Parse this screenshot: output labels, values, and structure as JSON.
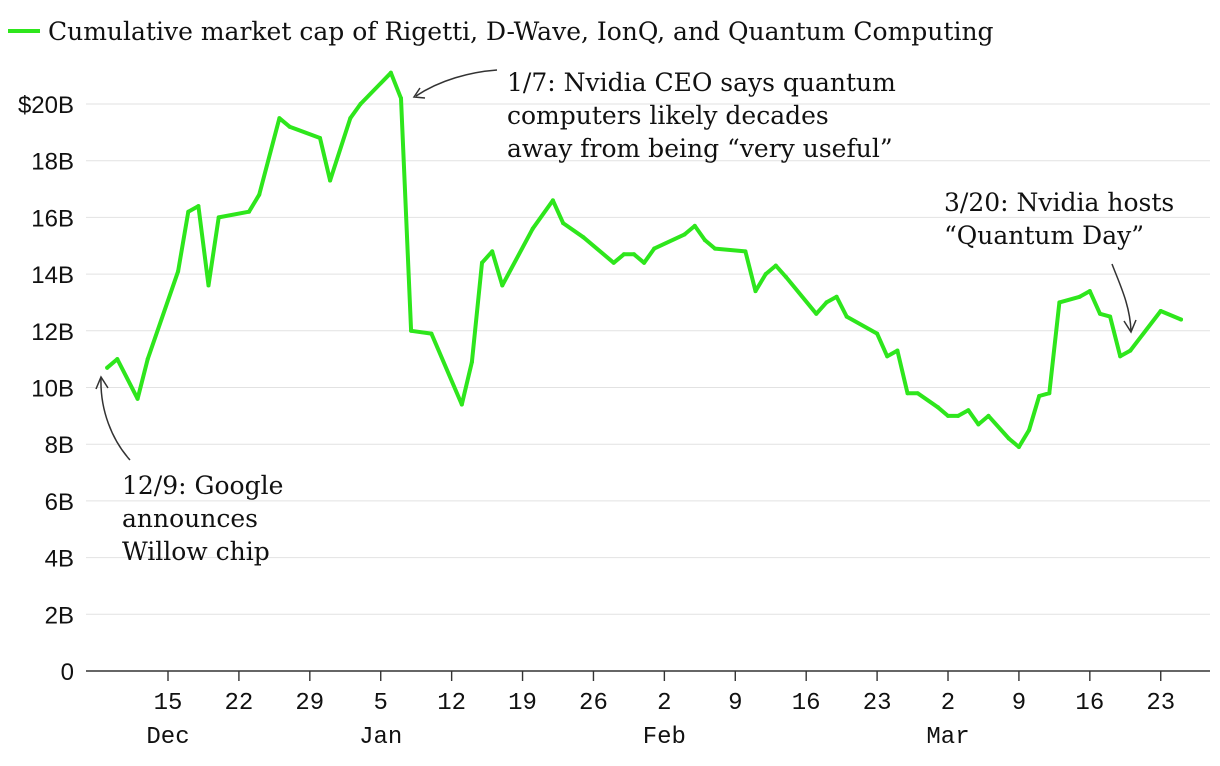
{
  "chart_data": {
    "type": "line",
    "legend": "Cumulative market cap of Rigetti, D-Wave, IonQ, and Quantum Computing",
    "series_color": "#2ee61c",
    "ylim": [
      0,
      21
    ],
    "y_ticks": [
      {
        "value": 0,
        "label": "0"
      },
      {
        "value": 2,
        "label": "2B"
      },
      {
        "value": 4,
        "label": "4B"
      },
      {
        "value": 6,
        "label": "6B"
      },
      {
        "value": 8,
        "label": "8B"
      },
      {
        "value": 10,
        "label": "10B"
      },
      {
        "value": 12,
        "label": "12B"
      },
      {
        "value": 14,
        "label": "14B"
      },
      {
        "value": 16,
        "label": "16B"
      },
      {
        "value": 18,
        "label": "18B"
      },
      {
        "value": 20,
        "label": "$20B"
      }
    ],
    "x_ticks": [
      {
        "day": 15,
        "label": "15"
      },
      {
        "day": 22,
        "label": "22"
      },
      {
        "day": 29,
        "label": "29"
      },
      {
        "day": 36,
        "label": "5"
      },
      {
        "day": 43,
        "label": "12"
      },
      {
        "day": 50,
        "label": "19"
      },
      {
        "day": 57,
        "label": "26"
      },
      {
        "day": 64,
        "label": "2"
      },
      {
        "day": 71,
        "label": "9"
      },
      {
        "day": 78,
        "label": "16"
      },
      {
        "day": 85,
        "label": "23"
      },
      {
        "day": 92,
        "label": "2"
      },
      {
        "day": 99,
        "label": "9"
      },
      {
        "day": 106,
        "label": "16"
      },
      {
        "day": 113,
        "label": "23"
      }
    ],
    "months": [
      {
        "day": 15,
        "label": "Dec"
      },
      {
        "day": 36,
        "label": "Jan"
      },
      {
        "day": 64,
        "label": "Feb"
      },
      {
        "day": 92,
        "label": "Mar"
      }
    ],
    "points": [
      [
        9,
        10.7
      ],
      [
        10,
        11.0
      ],
      [
        12,
        9.6
      ],
      [
        13,
        11.0
      ],
      [
        16,
        14.1
      ],
      [
        17,
        16.2
      ],
      [
        18,
        16.4
      ],
      [
        19,
        13.6
      ],
      [
        20,
        16.0
      ],
      [
        23,
        16.2
      ],
      [
        24,
        16.8
      ],
      [
        26,
        19.5
      ],
      [
        27,
        19.2
      ],
      [
        30,
        18.8
      ],
      [
        31,
        17.3
      ],
      [
        33,
        19.5
      ],
      [
        34,
        20.0
      ],
      [
        37,
        21.1
      ],
      [
        38,
        20.2
      ],
      [
        39,
        12.0
      ],
      [
        41,
        11.9
      ],
      [
        44,
        9.4
      ],
      [
        45,
        10.9
      ],
      [
        46,
        14.4
      ],
      [
        47,
        14.8
      ],
      [
        48,
        13.6
      ],
      [
        51,
        15.6
      ],
      [
        53,
        16.6
      ],
      [
        54,
        15.8
      ],
      [
        56,
        15.3
      ],
      [
        59,
        14.4
      ],
      [
        60,
        14.7
      ],
      [
        61,
        14.7
      ],
      [
        62,
        14.4
      ],
      [
        63,
        14.9
      ],
      [
        66,
        15.4
      ],
      [
        67,
        15.7
      ],
      [
        68,
        15.2
      ],
      [
        69,
        14.9
      ],
      [
        72,
        14.8
      ],
      [
        73,
        13.4
      ],
      [
        74,
        14.0
      ],
      [
        75,
        14.3
      ],
      [
        76,
        13.9
      ],
      [
        79,
        12.6
      ],
      [
        80,
        13.0
      ],
      [
        81,
        13.2
      ],
      [
        82,
        12.5
      ],
      [
        85,
        11.9
      ],
      [
        86,
        11.1
      ],
      [
        87,
        11.3
      ],
      [
        88,
        9.8
      ],
      [
        89,
        9.8
      ],
      [
        91,
        9.3
      ],
      [
        92,
        9.0
      ],
      [
        93,
        9.0
      ],
      [
        94,
        9.2
      ],
      [
        95,
        8.7
      ],
      [
        96,
        9.0
      ],
      [
        98,
        8.2
      ],
      [
        99,
        7.9
      ],
      [
        100,
        8.5
      ],
      [
        101,
        9.7
      ],
      [
        102,
        9.8
      ],
      [
        103,
        13.0
      ],
      [
        105,
        13.2
      ],
      [
        106,
        13.4
      ],
      [
        107,
        12.6
      ],
      [
        108,
        12.5
      ],
      [
        109,
        11.1
      ],
      [
        110,
        11.3
      ],
      [
        113,
        12.7
      ],
      [
        115,
        12.4
      ]
    ],
    "annotations": [
      {
        "id": "google",
        "lines": [
          "12/9: Google",
          "announces",
          "Willow chip"
        ]
      },
      {
        "id": "nvidia-ceo",
        "lines": [
          "1/7: Nvidia CEO says quantum",
          "computers likely decades",
          "away from being “very useful”"
        ]
      },
      {
        "id": "quantum-day",
        "lines": [
          "3/20: Nvidia hosts",
          "“Quantum Day”"
        ]
      }
    ]
  }
}
